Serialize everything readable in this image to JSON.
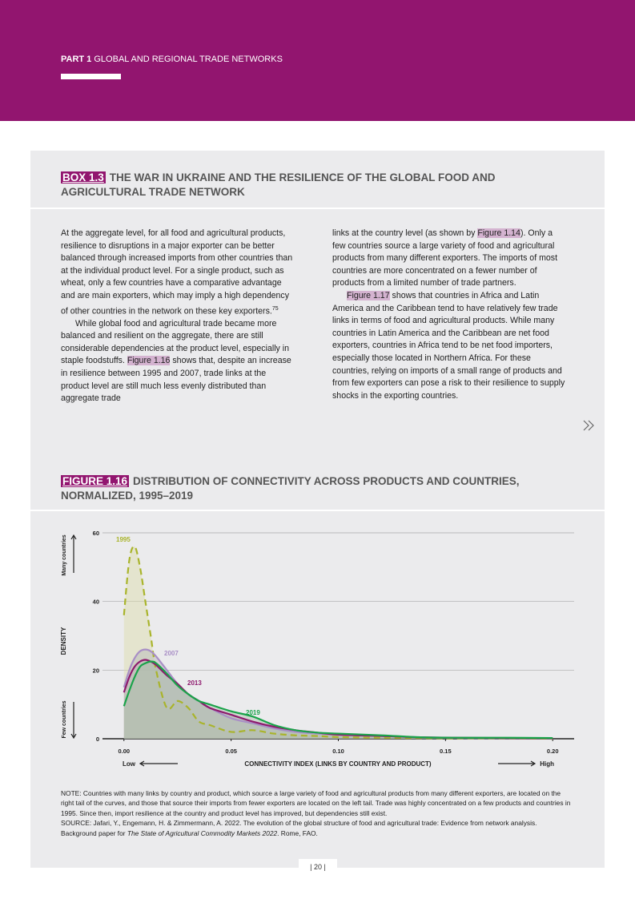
{
  "header": {
    "part": "PART 1",
    "title": "GLOBAL AND REGIONAL TRADE NETWORKS"
  },
  "box": {
    "label": "BOX 1.3",
    "title": "THE WAR IN UKRAINE AND THE RESILIENCE OF THE GLOBAL FOOD AND AGRICULTURAL TRADE NETWORK",
    "columns": [
      [
        [
          "At the aggregate level, for all food and agricultural products, resilience to disruptions in a major exporter can be better balanced through increased imports from other countries than at the individual product level. For a single product, such as wheat, only a few countries have a comparative advantage and are main exporters, which may imply a high dependency of other countries in the network on these key exporters.",
          {
            "sup": "75"
          }
        ],
        [
          "While global food and agricultural trade became more balanced and resilient on the aggregate, there are still considerable dependencies at the product level, especially in staple foodstuffs. ",
          {
            "ref": "Figure 1.16"
          },
          " shows that, despite an increase in resilience between 1995 and 2007, trade links at the product level are still much less evenly distributed than aggregate trade"
        ]
      ],
      [
        [
          "links at the country level (as shown by ",
          {
            "ref": "Figure 1.14"
          },
          "). Only a few countries source a large variety of food and agricultural products from many different exporters. The imports of most countries are more concentrated on a fewer number of products from a limited number of trade partners."
        ],
        [
          {
            "ref": "Figure 1.17"
          },
          " shows that countries in Africa and Latin America and the Caribbean tend to have relatively few trade links in terms of food and agricultural products. While many countries in Latin America and the Caribbean are net food exporters, countries in Africa tend to be net food importers, especially those located in Northern Africa. For these countries, relying on imports of a small range of products and from few exporters can pose a risk to their resilience to supply shocks in the exporting countries."
        ]
      ]
    ]
  },
  "chart_data": {
    "type": "line",
    "label": "FIGURE 1.16",
    "title": "DISTRIBUTION OF CONNECTIVITY ACROSS PRODUCTS AND COUNTRIES, NORMALIZED, 1995–2019",
    "x_label": "CONNECTIVITY INDEX (LINKS BY COUNTRY AND PRODUCT)",
    "low_label": "Low",
    "high_label": "High",
    "y_label": "DENSITY",
    "many_label": "Many countries",
    "few_label": "Few countries",
    "x": [
      0,
      0.0025,
      0.005,
      0.0075,
      0.01,
      0.0125,
      0.015,
      0.02,
      0.025,
      0.03,
      0.035,
      0.04,
      0.05,
      0.06,
      0.07,
      0.08,
      0.09,
      0.1,
      0.12,
      0.14,
      0.16,
      0.18,
      0.2
    ],
    "series": [
      {
        "name": "1995",
        "color": "#a9b42b",
        "fill": "#dcdca8",
        "style": "dashed",
        "values": [
          36,
          52,
          56,
          50,
          40,
          30,
          20,
          9,
          11,
          9,
          5,
          4,
          2,
          2.5,
          1.5,
          1,
          0.8,
          0.5,
          0.3,
          0.2,
          0.1,
          0.1,
          0
        ]
      },
      {
        "name": "2007",
        "color": "#a98fc6",
        "fill": "#b4b6b8",
        "style": "solid",
        "values": [
          15,
          20,
          23.5,
          25.5,
          26,
          25.5,
          24,
          20,
          16,
          13,
          11,
          9,
          6,
          4.5,
          3,
          2,
          1.5,
          1.2,
          0.8,
          0.4,
          0.2,
          0.2,
          0.1
        ]
      },
      {
        "name": "2013",
        "color": "#8e1a6e",
        "fill": "#b8b0b4",
        "style": "solid",
        "values": [
          13.5,
          18,
          21,
          22.5,
          23,
          22.5,
          21.5,
          18.5,
          16,
          13,
          11,
          9,
          7,
          5,
          3.5,
          2.5,
          1.8,
          1.2,
          0.8,
          0.4,
          0.3,
          0.2,
          0.1
        ]
      },
      {
        "name": "2019",
        "color": "#1aa34a",
        "fill": "#a9bfa8",
        "style": "solid",
        "values": [
          9.5,
          14,
          18,
          21,
          22,
          22.5,
          22,
          19,
          15.5,
          13,
          11,
          10,
          8,
          6.5,
          4,
          2.5,
          1.8,
          1.5,
          1,
          0.4,
          0.3,
          0.3,
          0.2
        ]
      }
    ],
    "xlim": [
      -0.01,
      0.21
    ],
    "ylim": [
      0,
      60
    ],
    "xticks": [
      {
        "value": 0,
        "label": "0.00"
      },
      {
        "value": 0.05,
        "label": "0.05"
      },
      {
        "value": 0.1,
        "label": "0.10"
      },
      {
        "value": 0.15,
        "label": "0.15"
      },
      {
        "value": 0.2,
        "label": "0.20"
      }
    ],
    "yticks": [
      0,
      20,
      40,
      60
    ],
    "grid": true
  },
  "note": "NOTE: Countries with many links by country and product, which source a large variety of food and agricultural products from many different exporters, are located on the right tail of the curves, and those that source their imports from fewer exporters are located on the left tail. Trade was highly concentrated on a few products and countries in 1995. Since then, import resilience at the country and product level has improved, but dependencies still exist.",
  "source": [
    "SOURCE: Jafari, Y., Engemann, H. & Zimmermann, A. 2022. The evolution of the global structure of food and agricultural trade: Evidence from network analysis. Background paper for ",
    {
      "italic": "The State of Agricultural Commodity Markets 2022"
    },
    ". Rome, FAO."
  ],
  "page_number": "| 20 |"
}
